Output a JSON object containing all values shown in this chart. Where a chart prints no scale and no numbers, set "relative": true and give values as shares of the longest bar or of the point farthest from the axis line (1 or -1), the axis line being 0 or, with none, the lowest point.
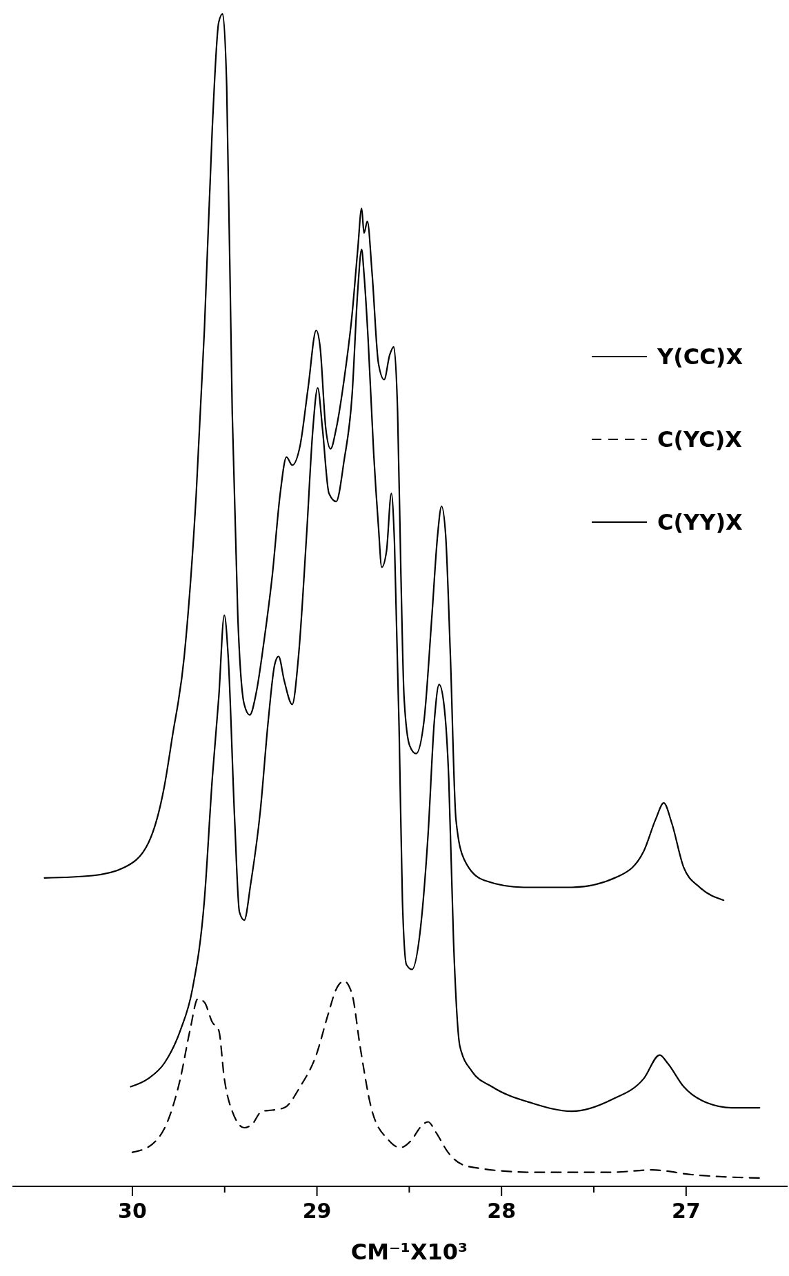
{
  "chart_data": {
    "type": "line",
    "relative": true,
    "xlabel": "CM⁻¹X10³",
    "xlim": [
      30.65,
      26.45
    ],
    "xticks": [
      30,
      {
        "value": 29.5,
        "label": null
      },
      29,
      {
        "value": 28.5,
        "label": null
      },
      28,
      {
        "value": 27.5,
        "label": null
      },
      27
    ],
    "legend": "right",
    "tick_labels": "x",
    "series": [
      {
        "name": "Y(CC)X",
        "color": "#000000",
        "line_style": "solid",
        "x": [
          30.009,
          29.913,
          29.827,
          29.74,
          29.675,
          29.61,
          29.567,
          29.532,
          29.502,
          29.481,
          29.446,
          29.42,
          29.394,
          29.359,
          29.307,
          29.264,
          29.229,
          29.208,
          29.177,
          29.134,
          29.1,
          29.056,
          29.022,
          28.996,
          28.97,
          28.935,
          28.896,
          28.853,
          28.81,
          28.779,
          28.758,
          28.745,
          28.723,
          28.693,
          28.667,
          28.649,
          28.623,
          28.597,
          28.58,
          28.554,
          28.537,
          28.515,
          28.485,
          28.442,
          28.398,
          28.364,
          28.338,
          28.312,
          28.286,
          28.26,
          28.225,
          28.16,
          28.052,
          27.835,
          27.619,
          27.403,
          27.229,
          27.143,
          27.1,
          27.013,
          26.883,
          26.753,
          26.602
        ],
        "values": [
          0.085,
          0.092,
          0.105,
          0.133,
          0.168,
          0.244,
          0.348,
          0.417,
          0.487,
          0.452,
          0.313,
          0.234,
          0.227,
          0.258,
          0.32,
          0.397,
          0.445,
          0.452,
          0.431,
          0.411,
          0.452,
          0.556,
          0.646,
          0.681,
          0.646,
          0.591,
          0.584,
          0.619,
          0.674,
          0.764,
          0.799,
          0.778,
          0.723,
          0.626,
          0.563,
          0.528,
          0.542,
          0.591,
          0.549,
          0.383,
          0.244,
          0.189,
          0.185,
          0.216,
          0.3,
          0.397,
          0.428,
          0.411,
          0.348,
          0.209,
          0.119,
          0.098,
          0.085,
          0.071,
          0.064,
          0.074,
          0.092,
          0.112,
          0.105,
          0.085,
          0.071,
          0.067,
          0.067
        ]
      },
      {
        "name": "C(YC)X",
        "color": "#000000",
        "line_style": "dashed",
        "x": [
          30,
          29.892,
          29.805,
          29.74,
          29.688,
          29.645,
          29.61,
          29.567,
          29.532,
          29.502,
          29.459,
          29.394,
          29.351,
          29.299,
          29.242,
          29.177,
          29.091,
          29.004,
          28.939,
          28.896,
          28.853,
          28.81,
          28.766,
          28.701,
          28.615,
          28.55,
          28.485,
          28.442,
          28.398,
          28.355,
          28.29,
          28.182,
          27.835,
          27.403,
          27.186,
          26.97,
          26.58
        ],
        "values": [
          0.029,
          0.036,
          0.057,
          0.092,
          0.133,
          0.16,
          0.157,
          0.14,
          0.133,
          0.092,
          0.064,
          0.05,
          0.053,
          0.064,
          0.065,
          0.067,
          0.085,
          0.112,
          0.147,
          0.168,
          0.175,
          0.164,
          0.119,
          0.064,
          0.04,
          0.033,
          0.04,
          0.05,
          0.055,
          0.046,
          0.029,
          0.017,
          0.012,
          0.012,
          0.014,
          0.01,
          0.007
        ]
      },
      {
        "name": "C(YY)X",
        "color": "#000000",
        "line_style": "solid",
        "x": [
          30.476,
          30.216,
          30.043,
          29.913,
          29.827,
          29.784,
          29.719,
          29.654,
          29.61,
          29.567,
          29.532,
          29.511,
          29.489,
          29.459,
          29.429,
          29.394,
          29.364,
          29.329,
          29.286,
          29.242,
          29.199,
          29.165,
          29.134,
          29.091,
          29.048,
          29.004,
          28.983,
          28.952,
          28.926,
          28.896,
          28.853,
          28.81,
          28.779,
          28.758,
          28.745,
          28.727,
          28.701,
          28.667,
          28.636,
          28.606,
          28.584,
          28.563,
          28.545,
          28.528,
          28.498,
          28.463,
          28.42,
          28.377,
          28.346,
          28.325,
          28.303,
          28.277,
          28.247,
          28.203,
          28.095,
          27.879,
          27.619,
          27.359,
          27.229,
          27.165,
          27.121,
          27.078,
          27.013,
          26.926,
          26.797
        ],
        "values": [
          0.263,
          0.265,
          0.272,
          0.293,
          0.341,
          0.383,
          0.452,
          0.591,
          0.73,
          0.903,
          0.993,
          1,
          0.938,
          0.66,
          0.487,
          0.411,
          0.402,
          0.421,
          0.466,
          0.521,
          0.591,
          0.622,
          0.615,
          0.632,
          0.681,
          0.73,
          0.716,
          0.646,
          0.629,
          0.646,
          0.688,
          0.743,
          0.799,
          0.834,
          0.813,
          0.823,
          0.778,
          0.702,
          0.688,
          0.709,
          0.716,
          0.66,
          0.521,
          0.417,
          0.376,
          0.369,
          0.397,
          0.487,
          0.556,
          0.58,
          0.556,
          0.452,
          0.313,
          0.279,
          0.261,
          0.255,
          0.255,
          0.265,
          0.286,
          0.313,
          0.327,
          0.31,
          0.272,
          0.255,
          0.244
        ]
      }
    ]
  }
}
